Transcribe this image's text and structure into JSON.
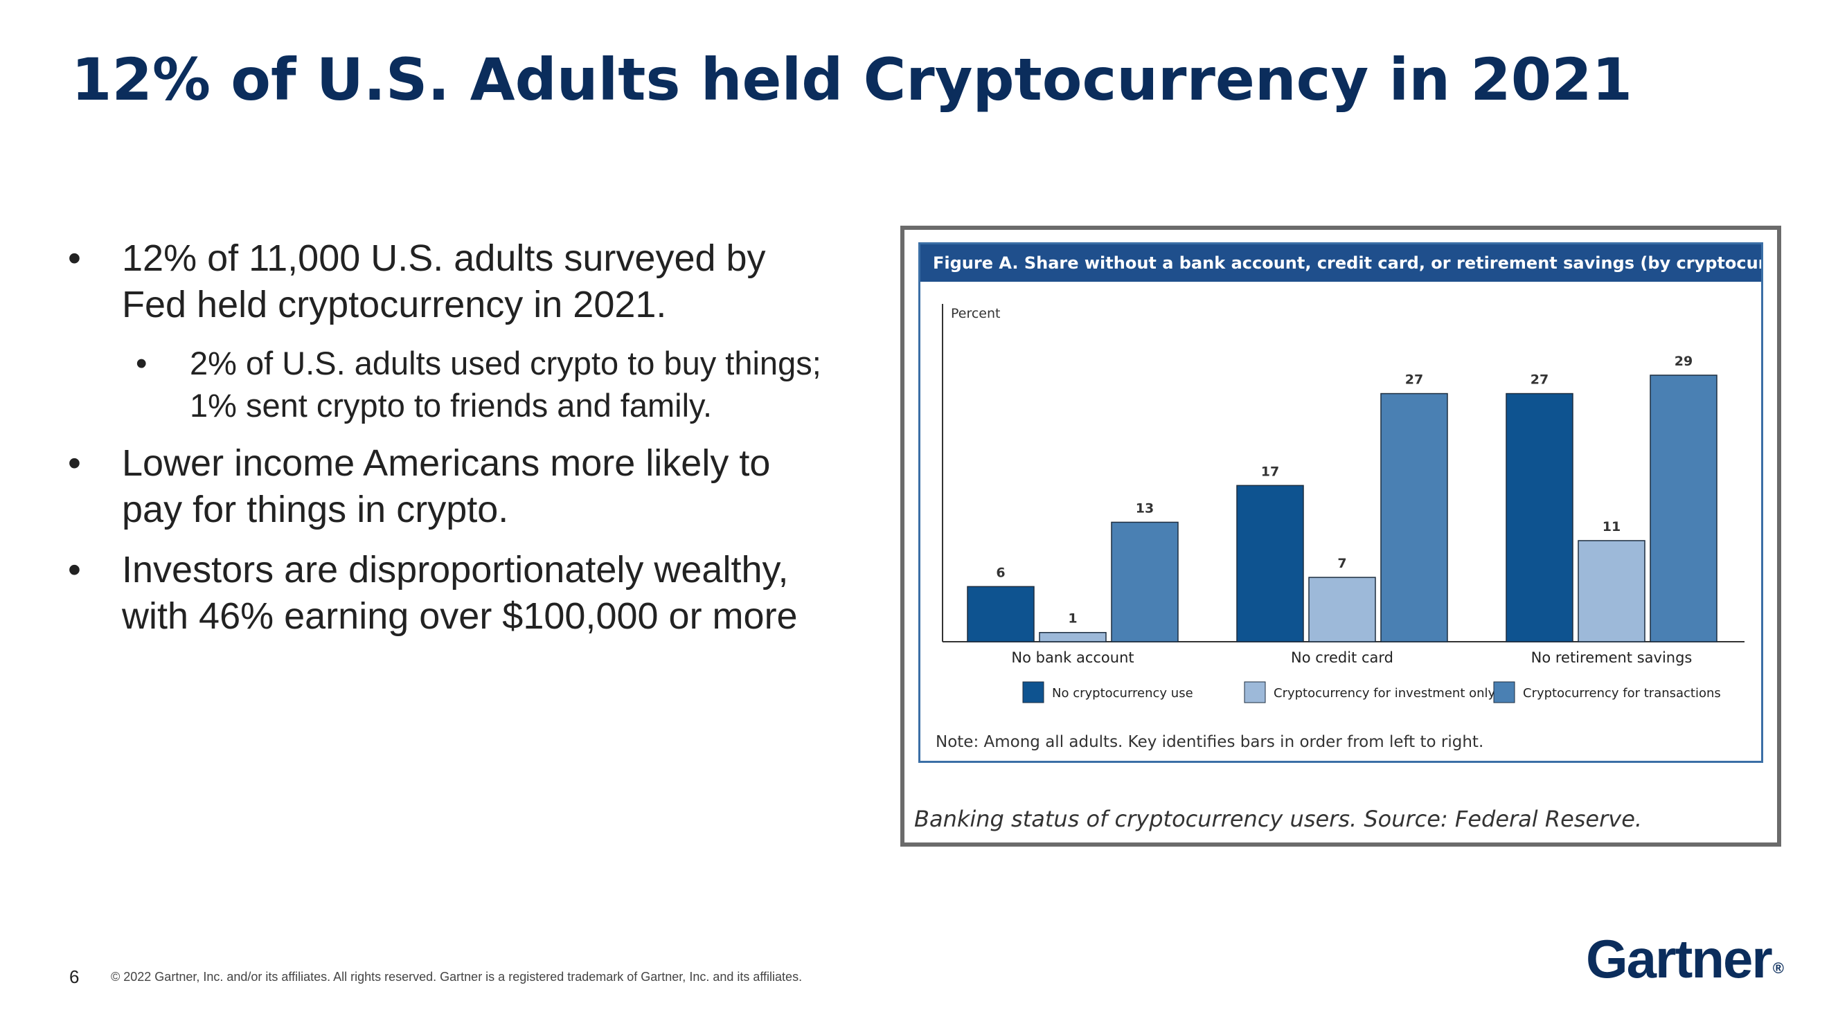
{
  "slide": {
    "title": "12% of U.S. Adults held Cryptocurrency in 2021",
    "bullets": [
      "12% of 11,000 U.S. adults surveyed by Fed held cryptocurrency in 2021.",
      "2% of U.S. adults used crypto to buy things; 1% sent crypto to friends and family.",
      "Lower income Americans more likely to pay for things in crypto.",
      "Investors are disproportionately wealthy, with 46% earning over $100,000 or more"
    ],
    "bullet_symbol": "•",
    "page_number": "6",
    "copyright": "© 2022 Gartner, Inc. and/or its affiliates. All rights reserved. Gartner is a registered trademark of Gartner, Inc. and its affiliates.",
    "logo_text": "Gartner",
    "logo_mark": "®"
  },
  "figure": {
    "caption": "Banking status of cryptocurrency users. Source: Federal Reserve."
  },
  "chart_data": {
    "type": "bar",
    "title": "Figure A. Share without a bank account, credit card, or retirement savings (by cryptocurrency use)",
    "ylabel": "Percent",
    "xlabel": "",
    "categories": [
      "No bank account",
      "No credit card",
      "No retirement savings"
    ],
    "series": [
      {
        "name": "No cryptocurrency use",
        "values": [
          6,
          17,
          27
        ],
        "color": "#0e5390"
      },
      {
        "name": "Cryptocurrency for investment only",
        "values": [
          1,
          7,
          11
        ],
        "color": "#9db9d9"
      },
      {
        "name": "Cryptocurrency for transactions",
        "values": [
          13,
          27,
          29
        ],
        "color": "#4a80b3"
      }
    ],
    "ylim": [
      0,
      30
    ],
    "grid": false,
    "data_labels": true,
    "legend_position": "bottom",
    "note": "Note: Among all adults. Key identifies bars in order from left to right."
  },
  "colors": {
    "title": "#0b2d5c",
    "figure_header": "#1f4f8c",
    "figure_border": "#3b6fa6"
  }
}
